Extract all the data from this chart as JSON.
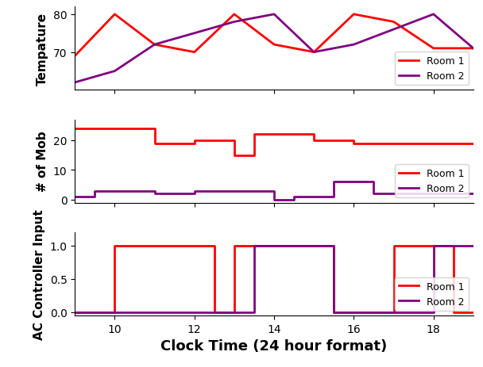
{
  "xlabel": "Clock Time (24 hour format)",
  "ax1_ylabel": "Tempature",
  "ax2_ylabel": "# of Mob",
  "ax3_ylabel": "AC Controller Input",
  "room1_color": "#ff0000",
  "room2_color": "#800080",
  "legend_room1": "Room 1",
  "legend_room2": "Room 2",
  "temp_x": [
    9,
    10,
    11,
    12,
    13,
    14,
    15,
    16,
    17,
    18,
    19
  ],
  "temp_r1": [
    69,
    80,
    72,
    70,
    80,
    72,
    70,
    80,
    78,
    71,
    71
  ],
  "temp_r2": [
    62,
    65,
    72,
    75,
    78,
    80,
    70,
    72,
    76,
    80,
    71
  ],
  "mob_x_r1": [
    9,
    11,
    11,
    12,
    12,
    13,
    13,
    13.5,
    13.5,
    15,
    15,
    16,
    16,
    19
  ],
  "mob_r1": [
    24,
    24,
    19,
    19,
    20,
    20,
    15,
    15,
    22,
    22,
    20,
    20,
    19,
    19
  ],
  "mob_x_r2": [
    9,
    9.5,
    9.5,
    11,
    11,
    12,
    12,
    14,
    14,
    14.5,
    14.5,
    15.5,
    15.5,
    16.5,
    16.5,
    19
  ],
  "mob_r2": [
    1,
    1,
    3,
    3,
    2,
    2,
    3,
    3,
    0,
    0,
    1,
    1,
    6,
    6,
    2,
    2
  ],
  "ac_x_r1": [
    9,
    10,
    10,
    12.5,
    12.5,
    13,
    13,
    15.5,
    15.5,
    17,
    17,
    18.5,
    18.5,
    19
  ],
  "ac_r1": [
    0,
    0,
    1,
    1,
    0,
    0,
    1,
    1,
    0,
    0,
    1,
    1,
    0,
    0
  ],
  "ac_x_r2": [
    9,
    13.5,
    13.5,
    15.5,
    15.5,
    18,
    18,
    19
  ],
  "ac_r2": [
    0,
    0,
    1,
    1,
    0,
    0,
    1,
    1
  ],
  "xlim": [
    9,
    19
  ],
  "xticks": [
    10,
    12,
    14,
    16,
    18
  ],
  "temp_ylim": [
    60,
    82
  ],
  "temp_yticks": [
    70,
    80
  ],
  "mob_ylim": [
    -1,
    27
  ],
  "mob_yticks": [
    0,
    10,
    20
  ],
  "ac_ylim": [
    -0.05,
    1.2
  ],
  "ac_yticks": [
    0.0,
    0.5,
    1.0
  ],
  "linewidth": 2.0,
  "legend_fontsize": 9,
  "ylabel_fontsize": 11,
  "xlabel_fontsize": 13,
  "tick_labelsize": 10
}
